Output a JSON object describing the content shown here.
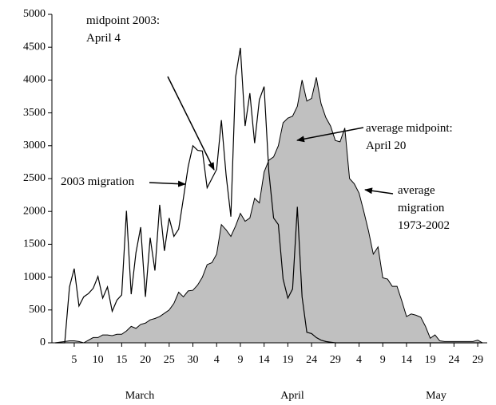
{
  "chart_data": {
    "type": "line",
    "x": [
      1,
      2,
      3,
      4,
      5,
      6,
      7,
      8,
      9,
      10,
      11,
      12,
      13,
      14,
      15,
      16,
      17,
      18,
      19,
      20,
      21,
      22,
      23,
      24,
      25,
      26,
      27,
      28,
      29,
      30,
      31,
      32,
      33,
      34,
      35,
      36,
      37,
      38,
      39,
      40,
      41,
      42,
      43,
      44,
      45,
      46,
      47,
      48,
      49,
      50,
      51,
      52,
      53,
      54,
      55,
      56,
      57,
      58,
      59,
      60,
      61,
      62,
      63,
      64,
      65,
      66,
      67,
      68,
      69,
      70,
      71,
      72,
      73,
      74,
      75,
      76,
      77,
      78,
      79,
      80,
      81,
      82,
      83,
      84,
      85,
      86,
      87,
      88,
      89,
      90,
      91
    ],
    "series": [
      {
        "name": "2003 migration",
        "type": "line",
        "color": "#000000",
        "values": [
          0,
          0,
          0,
          850,
          1130,
          560,
          700,
          750,
          830,
          1010,
          680,
          850,
          480,
          650,
          730,
          2010,
          740,
          1370,
          1760,
          700,
          1600,
          1100,
          2100,
          1400,
          1900,
          1620,
          1730,
          2200,
          2680,
          3000,
          2930,
          2920,
          2360,
          2500,
          2640,
          3390,
          2550,
          1920,
          4050,
          4490,
          3300,
          3800,
          3040,
          3700,
          3900,
          2600,
          1900,
          1800,
          970,
          680,
          820,
          2070,
          700,
          160,
          140,
          80,
          40,
          20,
          10,
          0,
          0,
          0,
          0,
          0,
          0,
          0,
          0,
          0,
          0,
          0,
          0,
          0,
          0,
          0,
          0,
          0,
          0,
          0,
          0,
          0,
          0,
          0,
          0,
          0,
          0,
          0,
          0,
          0,
          0,
          0,
          0
        ]
      },
      {
        "name": "average migration 1973-2002",
        "type": "area",
        "color": "#c0c0c0",
        "values": [
          0,
          10,
          20,
          30,
          30,
          20,
          0,
          40,
          80,
          80,
          120,
          120,
          110,
          130,
          130,
          180,
          250,
          220,
          280,
          300,
          350,
          370,
          400,
          450,
          500,
          600,
          770,
          700,
          790,
          800,
          880,
          1000,
          1190,
          1220,
          1350,
          1800,
          1720,
          1620,
          1780,
          1970,
          1850,
          1900,
          2200,
          2130,
          2600,
          2780,
          2830,
          3000,
          3350,
          3420,
          3450,
          3600,
          4000,
          3680,
          3720,
          4040,
          3640,
          3430,
          3300,
          3080,
          3060,
          3270,
          2500,
          2420,
          2280,
          2000,
          1700,
          1350,
          1460,
          990,
          970,
          860,
          860,
          640,
          400,
          440,
          420,
          390,
          250,
          70,
          120,
          30,
          20,
          20,
          20,
          20,
          20,
          20,
          20,
          40,
          0
        ]
      }
    ],
    "xlim": [
      0.3,
      92
    ],
    "xticks": [
      5,
      10,
      15,
      20,
      25,
      30,
      {
        "value": 35,
        "label": "4"
      },
      {
        "value": 40,
        "label": "9"
      },
      {
        "value": 45,
        "label": "14"
      },
      {
        "value": 50,
        "label": "19"
      },
      {
        "value": 55,
        "label": "24"
      },
      {
        "value": 60,
        "label": "29"
      },
      {
        "value": 65,
        "label": "4"
      },
      {
        "value": 70,
        "label": "9"
      },
      {
        "value": 75,
        "label": "14"
      },
      {
        "value": 80,
        "label": "19"
      },
      {
        "value": 85,
        "label": "24"
      },
      {
        "value": 90,
        "label": "29"
      }
    ],
    "months": [
      "March",
      "April",
      "May"
    ],
    "ylim": [
      0,
      5000
    ],
    "yticks": [
      0,
      500,
      1000,
      1500,
      2000,
      2500,
      3000,
      3500,
      4000,
      4500,
      5000
    ],
    "grid": false,
    "annotations": [
      {
        "text": "midpoint 2003: April 4"
      },
      {
        "text": "average midpoint: April 20"
      }
    ]
  }
}
